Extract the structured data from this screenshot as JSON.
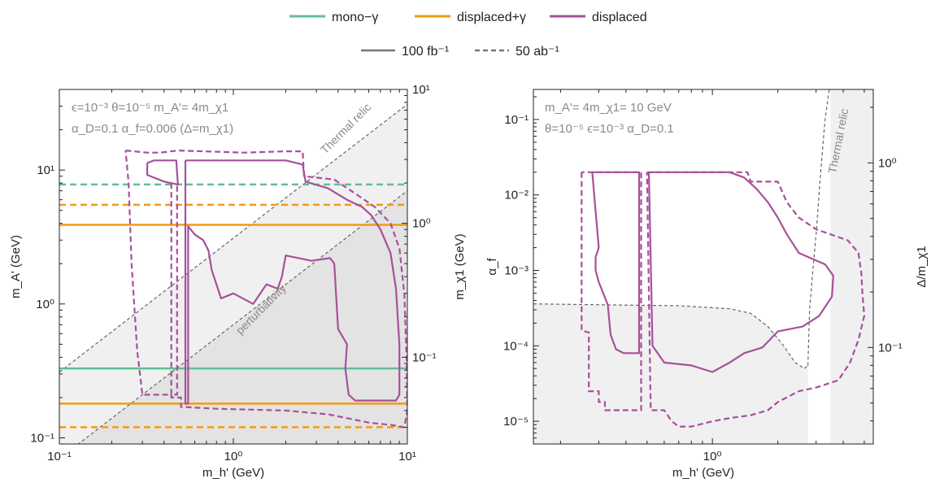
{
  "colors": {
    "mono": "#5fbf95",
    "dispg": "#f39c12",
    "disp": "#a8509a",
    "guide": "#666666",
    "shade_light": "#f0f0f0",
    "shade_dark": "#e3e3e3",
    "frame": "#222222"
  },
  "legend": {
    "mono": "mono−γ",
    "dispg": "displaced+γ",
    "disp": "displaced",
    "solid": "100 fb⁻¹",
    "dashed": "50 ab⁻¹"
  },
  "chart_data": [
    {
      "type": "line",
      "scale": "log-log",
      "xlabel": "m_h' (GeV)",
      "ylabel": "m_A' (GeV)",
      "y2label": "m_χ1 (GeV)",
      "xlim": [
        0.1,
        10
      ],
      "ylim": [
        0.09,
        40
      ],
      "y2lim": [
        0.0225,
        10
      ],
      "xticks": [
        "10⁻¹",
        "10⁰",
        "10¹"
      ],
      "yticks": [
        "10⁻¹",
        "10⁰",
        "10¹"
      ],
      "y2ticks": [
        "10⁻¹",
        "10⁰",
        "10¹"
      ],
      "annotations": {
        "line1": "ϵ=10⁻³  θ=10⁻⁵  m_A'= 4m_χ1",
        "line2": "α_D=0.1  α_f=0.006 (Δ=m_χ1)",
        "thermal": "Thermal relic",
        "perturbativity": "perturbativity"
      },
      "horizontal_lines": [
        {
          "series": "mono-γ",
          "lumi": "50 ab⁻¹",
          "style": "dashed",
          "y": 7.8
        },
        {
          "series": "displaced+γ",
          "lumi": "50 ab⁻¹",
          "style": "dashed",
          "y": 5.5
        },
        {
          "series": "displaced+γ",
          "lumi": "100 fb⁻¹",
          "style": "solid",
          "y": 3.9
        },
        {
          "series": "mono-γ",
          "lumi": "100 fb⁻¹",
          "style": "solid",
          "y": 0.33
        },
        {
          "series": "displaced+γ",
          "lumi": "100 fb⁻¹",
          "style": "solid",
          "y": 0.18
        },
        {
          "series": "displaced+γ",
          "lumi": "50 ab⁻¹",
          "style": "dashed",
          "y": 0.12
        }
      ],
      "guide_lines": [
        {
          "name": "Thermal relic",
          "points": [
            [
              0.1,
              0.31
            ],
            [
              10,
              31
            ]
          ]
        },
        {
          "name": "perturbativity",
          "points": [
            [
              0.1,
              0.07
            ],
            [
              10,
              7.0
            ]
          ]
        }
      ],
      "shaded_regions": [
        {
          "name": "below thermal relic",
          "points": [
            [
              0.1,
              0.31
            ],
            [
              10,
              31
            ],
            [
              10,
              0.09
            ],
            [
              0.1,
              0.09
            ]
          ]
        },
        {
          "name": "below perturbativity",
          "points": [
            [
              0.1,
              0.07
            ],
            [
              10,
              7.0
            ],
            [
              10,
              0.09
            ],
            [
              0.1,
              0.09
            ]
          ]
        }
      ],
      "series": [
        {
          "name": "displaced",
          "lumi": "50 ab⁻¹",
          "style": "dashed",
          "points": [
            [
              0.24,
              14
            ],
            [
              0.32,
              13.5
            ],
            [
              0.38,
              13.5
            ],
            [
              0.48,
              14
            ],
            [
              1.15,
              13.5
            ],
            [
              2.0,
              13.8
            ],
            [
              2.5,
              13.8
            ],
            [
              2.55,
              9
            ],
            [
              3.8,
              8.5
            ],
            [
              5.0,
              6.7
            ],
            [
              6.5,
              5.3
            ],
            [
              8.0,
              4.0
            ],
            [
              9.0,
              2.6
            ],
            [
              9.6,
              1.2
            ],
            [
              9.9,
              0.4
            ],
            [
              10.0,
              0.16
            ],
            [
              9.6,
              0.12
            ],
            [
              8.0,
              0.125
            ],
            [
              6.0,
              0.13
            ],
            [
              3.5,
              0.15
            ],
            [
              2.0,
              0.16
            ],
            [
              0.8,
              0.165
            ],
            [
              0.52,
              0.17
            ],
            [
              0.5,
              0.17
            ],
            [
              0.5,
              0.2
            ],
            [
              0.44,
              0.2
            ],
            [
              0.44,
              0.21
            ],
            [
              0.3,
              0.21
            ],
            [
              0.28,
              0.45
            ],
            [
              0.26,
              2.0
            ],
            [
              0.25,
              8.0
            ],
            [
              0.24,
              14
            ]
          ]
        },
        {
          "name": "displaced",
          "lumi": "100 fb⁻¹",
          "style": "solid",
          "points": [
            [
              0.32,
              11.3
            ],
            [
              0.35,
              11.8
            ],
            [
              0.47,
              11.8
            ],
            [
              0.48,
              7.8
            ],
            [
              0.4,
              8.2
            ],
            [
              0.32,
              9.2
            ],
            [
              0.32,
              11.3
            ]
          ]
        },
        {
          "name": "displaced",
          "lumi": "100 fb⁻¹",
          "style": "solid",
          "points": [
            [
              0.53,
              11.8
            ],
            [
              1.2,
              11.8
            ],
            [
              2.0,
              11.8
            ],
            [
              2.5,
              11.0
            ],
            [
              2.6,
              8.2
            ],
            [
              3.5,
              7.3
            ],
            [
              4.5,
              6.0
            ],
            [
              5.5,
              5.3
            ],
            [
              6.2,
              4.6
            ],
            [
              7.0,
              3.6
            ],
            [
              8.0,
              2.4
            ],
            [
              8.6,
              1.3
            ],
            [
              9.0,
              0.5
            ],
            [
              9.0,
              0.21
            ],
            [
              8.6,
              0.19
            ],
            [
              7.0,
              0.19
            ],
            [
              5.0,
              0.19
            ],
            [
              4.6,
              0.21
            ],
            [
              4.4,
              0.33
            ],
            [
              4.5,
              0.5
            ],
            [
              4.0,
              0.65
            ],
            [
              3.8,
              2.0
            ],
            [
              3.6,
              2.2
            ],
            [
              2.8,
              2.1
            ],
            [
              2.0,
              2.3
            ],
            [
              1.9,
              1.6
            ],
            [
              1.8,
              1.3
            ],
            [
              1.55,
              1.4
            ],
            [
              1.3,
              1.0
            ],
            [
              1.0,
              1.2
            ],
            [
              0.85,
              1.1
            ],
            [
              0.75,
              1.8
            ],
            [
              0.72,
              2.5
            ],
            [
              0.67,
              3.0
            ],
            [
              0.6,
              3.3
            ],
            [
              0.55,
              3.8
            ],
            [
              0.55,
              0.18
            ],
            [
              0.53,
              0.18
            ],
            [
              0.53,
              11.8
            ]
          ]
        },
        {
          "name": "displaced",
          "lumi": "50 ab⁻¹",
          "style": "dashed",
          "points": [
            [
              0.44,
              8.0
            ],
            [
              0.44,
              0.21
            ],
            [
              0.475,
              0.21
            ],
            [
              0.475,
              7.8
            ]
          ]
        }
      ]
    },
    {
      "type": "line",
      "scale": "log-log",
      "xlabel": "m_h' (GeV)",
      "ylabel": "α_f",
      "y2label": "Δ/m_χ1",
      "xlim": [
        0.15,
        5.5
      ],
      "ylim": [
        5e-06,
        0.25
      ],
      "y2lim": [
        0.03,
        2.5
      ],
      "xticks": [
        "10⁰"
      ],
      "yticks": [
        "10⁻⁵",
        "10⁻⁴",
        "10⁻³",
        "10⁻²",
        "10⁻¹"
      ],
      "y2ticks": [
        "10⁻¹",
        "10⁰"
      ],
      "annotations": {
        "line1": "m_A'= 4m_χ1= 10 GeV",
        "line2": "θ=10⁻⁵  ϵ=10⁻³  α_D=0.1",
        "thermal": "Thermal relic"
      },
      "shaded_regions": [
        {
          "name": "excluded below curve",
          "points": [
            [
              0.15,
              0.00036
            ],
            [
              0.3,
              0.00035
            ],
            [
              0.7,
              0.00034
            ],
            [
              1.2,
              0.00031
            ],
            [
              1.5,
              0.00027
            ],
            [
              1.8,
              0.00018
            ],
            [
              2.1,
              0.000105
            ],
            [
              2.4,
              6e-05
            ],
            [
              2.65,
              5e-05
            ],
            [
              2.75,
              5.5e-05
            ],
            [
              2.75,
              5e-06
            ],
            [
              0.15,
              5e-06
            ]
          ]
        },
        {
          "name": "excluded right",
          "points": [
            [
              3.5,
              0.25
            ],
            [
              5.5,
              0.25
            ],
            [
              5.5,
              5e-06
            ],
            [
              3.5,
              5e-06
            ]
          ]
        }
      ],
      "guide_lines": [
        {
          "name": "Thermal relic",
          "points": [
            [
              2.75,
              5.5e-05
            ],
            [
              2.8,
              0.0003
            ],
            [
              2.9,
              0.001
            ],
            [
              3.0,
              0.003
            ],
            [
              3.15,
              0.02
            ],
            [
              3.3,
              0.1
            ],
            [
              3.45,
              0.25
            ]
          ]
        },
        {
          "name": "boundary",
          "points": [
            [
              0.15,
              0.00036
            ],
            [
              0.3,
              0.00035
            ],
            [
              0.7,
              0.00034
            ],
            [
              1.2,
              0.00031
            ],
            [
              1.5,
              0.00027
            ],
            [
              1.8,
              0.00018
            ],
            [
              2.1,
              0.000105
            ],
            [
              2.4,
              6e-05
            ],
            [
              2.65,
              5e-05
            ],
            [
              2.75,
              5.5e-05
            ]
          ]
        }
      ],
      "series": [
        {
          "name": "displaced",
          "lumi": "50 ab⁻¹",
          "style": "dashed",
          "points": [
            [
              0.25,
              0.02
            ],
            [
              0.25,
              0.00016
            ],
            [
              0.27,
              0.00015
            ],
            [
              0.27,
              2.5e-05
            ],
            [
              0.3,
              2.5e-05
            ],
            [
              0.3,
              1.8e-05
            ],
            [
              0.32,
              1.8e-05
            ],
            [
              0.32,
              1.4e-05
            ],
            [
              0.47,
              1.4e-05
            ],
            [
              0.47,
              0.02
            ],
            [
              0.25,
              0.02
            ]
          ]
        },
        {
          "name": "displaced",
          "lumi": "100 fb⁻¹",
          "style": "solid",
          "points": [
            [
              0.28,
              0.02
            ],
            [
              0.46,
              0.02
            ],
            [
              0.46,
              8e-05
            ],
            [
              0.39,
              8e-05
            ],
            [
              0.36,
              9e-05
            ],
            [
              0.34,
              0.00014
            ],
            [
              0.33,
              0.00035
            ],
            [
              0.3,
              0.0007
            ],
            [
              0.29,
              0.001
            ],
            [
              0.29,
              0.0015
            ],
            [
              0.3,
              0.002
            ],
            [
              0.28,
              0.02
            ]
          ]
        },
        {
          "name": "displaced",
          "lumi": "100 fb⁻¹",
          "style": "solid",
          "points": [
            [
              0.51,
              0.02
            ],
            [
              1.2,
              0.02
            ],
            [
              1.4,
              0.017
            ],
            [
              1.6,
              0.012
            ],
            [
              1.8,
              0.008
            ],
            [
              2.0,
              0.005
            ],
            [
              2.2,
              0.003
            ],
            [
              2.5,
              0.0017
            ],
            [
              3.3,
              0.0012
            ],
            [
              3.6,
              0.00085
            ],
            [
              3.55,
              0.00045
            ],
            [
              3.1,
              0.00025
            ],
            [
              2.6,
              0.00018
            ],
            [
              2.0,
              0.000155
            ],
            [
              1.7,
              9.5e-05
            ],
            [
              1.4,
              8e-05
            ],
            [
              1.2,
              6e-05
            ],
            [
              1.0,
              4.5e-05
            ],
            [
              0.8,
              5.5e-05
            ],
            [
              0.6,
              6e-05
            ],
            [
              0.53,
              0.0001
            ],
            [
              0.51,
              0.02
            ]
          ]
        },
        {
          "name": "displaced",
          "lumi": "50 ab⁻¹",
          "style": "dashed",
          "points": [
            [
              0.5,
              0.02
            ],
            [
              1.45,
              0.02
            ],
            [
              1.5,
              0.015
            ],
            [
              2.0,
              0.015
            ],
            [
              2.2,
              0.008
            ],
            [
              2.5,
              0.005
            ],
            [
              3.0,
              0.0035
            ],
            [
              3.5,
              0.003
            ],
            [
              4.2,
              0.0025
            ],
            [
              4.7,
              0.0017
            ],
            [
              4.85,
              0.0009
            ],
            [
              4.9,
              0.0005
            ],
            [
              5.0,
              0.00025
            ],
            [
              4.7,
              0.00012
            ],
            [
              4.3,
              6e-05
            ],
            [
              3.8,
              3.5e-05
            ],
            [
              3.0,
              2.8e-05
            ],
            [
              2.5,
              2.5e-05
            ],
            [
              2.0,
              1.8e-05
            ],
            [
              1.8,
              1.4e-05
            ],
            [
              1.5,
              1.2e-05
            ],
            [
              1.2,
              1.1e-05
            ],
            [
              1.0,
              1e-05
            ],
            [
              0.8,
              8.5e-06
            ],
            [
              0.7,
              8.5e-06
            ],
            [
              0.65,
              1e-05
            ],
            [
              0.6,
              1.4e-05
            ],
            [
              0.52,
              1.4e-05
            ],
            [
              0.5,
              0.02
            ]
          ]
        }
      ]
    }
  ]
}
